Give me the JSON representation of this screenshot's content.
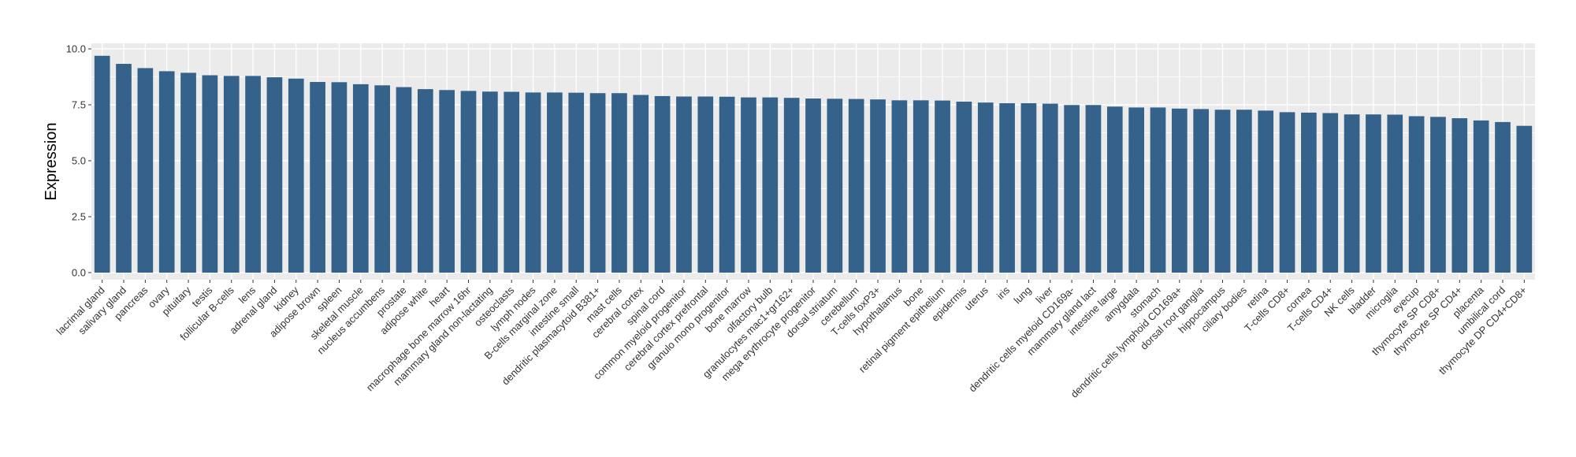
{
  "chart_data": {
    "type": "bar",
    "xlabel": "",
    "ylabel": "Expression",
    "ylim": [
      0,
      10
    ],
    "yticks": [
      "0.0",
      "2.5",
      "5.0",
      "7.5",
      "10.0"
    ],
    "grid": true,
    "bar_color": "#35628A",
    "panel_color": "#EBEBEB",
    "categories": [
      "lacrimal gland",
      "salivary gland",
      "pancreas",
      "ovary",
      "pituitary",
      "testis",
      "follicular B-cells",
      "lens",
      "adrenal gland",
      "kidney",
      "adipose brown",
      "spleen",
      "skeletal muscle",
      "nucleus accumbens",
      "prostate",
      "adipose white",
      "heart",
      "macrophage bone marrow 16hr",
      "mammary gland non-lactating",
      "osteoclasts",
      "lymph nodes",
      "B-cells marginal zone",
      "intestine small",
      "dendritic plasmacytoid B381+",
      "mast cells",
      "cerebral cortex",
      "spinal cord",
      "common myeloid progenitor",
      "cerebral cortex prefrontal",
      "granulo mono progenitor",
      "bone marrow",
      "olfactory bulb",
      "granulocytes mac1+gr162+",
      "mega erythrocyte progenitor",
      "dorsal striatum",
      "cerebellum",
      "T-cells foxP3+",
      "hypothalamus",
      "bone",
      "retinal pigment epithelium",
      "epidermis",
      "uterus",
      "iris",
      "lung",
      "liver",
      "dendritic cells myeloid CD169a-",
      "mammary gland lact",
      "intestine large",
      "amygdala",
      "stomach",
      "dendritic cells lymphoid CD169a+",
      "dorsal root ganglia",
      "hippocampus",
      "ciliary bodies",
      "retina",
      "T-cells CD8+",
      "cornea",
      "T-cells CD4+",
      "NK cells",
      "bladder",
      "microglia",
      "eyecup",
      "thymocyte SP CD8+",
      "thymocyte SP CD4+",
      "placenta",
      "umbilical cord",
      "thymocyte DP CD4+CD8+"
    ],
    "values": [
      9.69,
      9.33,
      9.14,
      9.0,
      8.93,
      8.82,
      8.79,
      8.79,
      8.73,
      8.67,
      8.52,
      8.51,
      8.42,
      8.37,
      8.29,
      8.2,
      8.16,
      8.12,
      8.09,
      8.08,
      8.05,
      8.05,
      8.04,
      8.02,
      8.02,
      7.94,
      7.89,
      7.87,
      7.87,
      7.86,
      7.83,
      7.83,
      7.81,
      7.78,
      7.77,
      7.76,
      7.74,
      7.7,
      7.7,
      7.69,
      7.64,
      7.6,
      7.57,
      7.57,
      7.55,
      7.49,
      7.49,
      7.42,
      7.38,
      7.38,
      7.33,
      7.31,
      7.28,
      7.28,
      7.24,
      7.17,
      7.15,
      7.13,
      7.07,
      7.07,
      7.06,
      6.99,
      6.96,
      6.9,
      6.8,
      6.73,
      6.56
    ]
  }
}
